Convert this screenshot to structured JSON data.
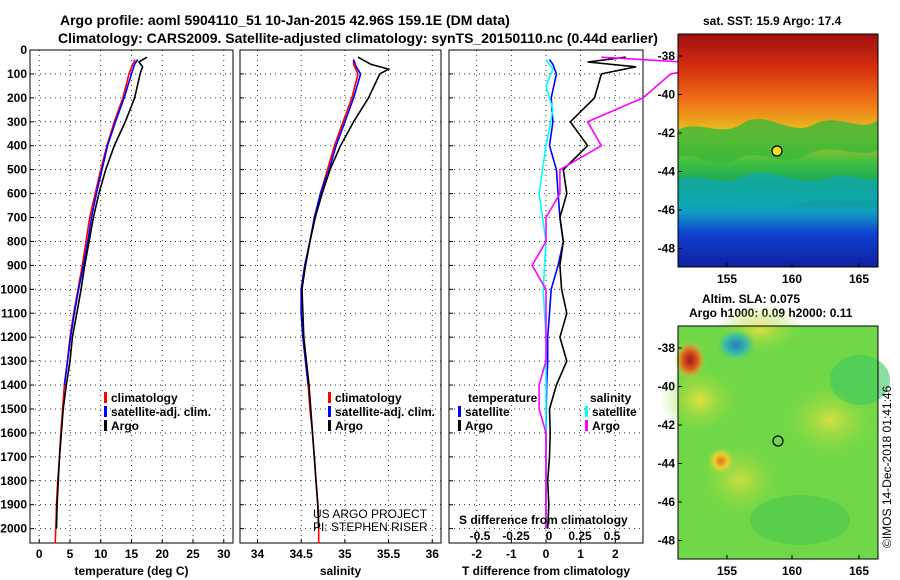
{
  "header": {
    "title_line1": "Argo profile: aoml 5904110_51 10-Jan-2015 42.96S 159.1E (DM data)",
    "title_line2": "Climatology: CARS2009. Satellite-adjusted climatology: synTS_20150110.nc (0.44d earlier)"
  },
  "colors": {
    "climatology": "#ff0000",
    "satellite": "#0000ff",
    "argo": "#000000",
    "satellite_s": "#00ffff",
    "argo_s": "#ff00ff"
  },
  "depth_axis": {
    "ticks": [
      0,
      100,
      200,
      300,
      400,
      500,
      600,
      700,
      800,
      900,
      1000,
      1100,
      1200,
      1300,
      1400,
      1500,
      1600,
      1700,
      1800,
      1900,
      2000
    ],
    "range": [
      2060,
      0
    ]
  },
  "chart_data": [
    {
      "type": "line",
      "id": "temperature",
      "xlabel": "temperature (deg C)",
      "xlim": [
        -1.5,
        31.5
      ],
      "xticks": [
        0,
        5,
        10,
        15,
        20,
        25,
        30
      ],
      "legend": [
        "climatology",
        "satellite-adj. clim.",
        "Argo"
      ],
      "series": [
        {
          "name": "climatology",
          "color": "#ff0000",
          "points": [
            [
              15.6,
              40
            ],
            [
              15.2,
              60
            ],
            [
              14.6,
              100
            ],
            [
              13.6,
              200
            ],
            [
              12.2,
              300
            ],
            [
              11,
              400
            ],
            [
              10,
              500
            ],
            [
              9.1,
              600
            ],
            [
              8.2,
              700
            ],
            [
              7.6,
              800
            ],
            [
              7,
              900
            ],
            [
              6.3,
              1000
            ],
            [
              5.6,
              1100
            ],
            [
              5,
              1200
            ],
            [
              4.6,
              1300
            ],
            [
              4.1,
              1400
            ],
            [
              3.8,
              1500
            ],
            [
              3.5,
              1600
            ],
            [
              3.3,
              1700
            ],
            [
              3,
              1800
            ],
            [
              2.8,
              1900
            ],
            [
              2.7,
              2000
            ],
            [
              2.6,
              2060
            ]
          ]
        },
        {
          "name": "satellite-adj. clim.",
          "color": "#0000ff",
          "points": [
            [
              16,
              40
            ],
            [
              15.5,
              60
            ],
            [
              15,
              100
            ],
            [
              13.8,
              200
            ],
            [
              12.4,
              300
            ],
            [
              11.1,
              400
            ],
            [
              10.2,
              500
            ],
            [
              9.3,
              600
            ],
            [
              8.5,
              700
            ],
            [
              7.9,
              800
            ],
            [
              7.2,
              900
            ],
            [
              6.4,
              1000
            ],
            [
              5.7,
              1100
            ],
            [
              5.1,
              1200
            ],
            [
              4.6,
              1300
            ],
            [
              4.1,
              1400
            ]
          ]
        },
        {
          "name": "Argo",
          "color": "#000000",
          "points": [
            [
              17.5,
              30
            ],
            [
              16.2,
              50
            ],
            [
              16.8,
              70
            ],
            [
              16.4,
              100
            ],
            [
              15.5,
              200
            ],
            [
              14,
              300
            ],
            [
              12.2,
              400
            ],
            [
              10.8,
              500
            ],
            [
              9.7,
              600
            ],
            [
              8.8,
              700
            ],
            [
              8.1,
              800
            ],
            [
              7.4,
              900
            ],
            [
              6.8,
              1000
            ],
            [
              6.1,
              1100
            ],
            [
              5.4,
              1200
            ],
            [
              5,
              1300
            ],
            [
              4.4,
              1400
            ],
            [
              3.9,
              1500
            ],
            [
              3.6,
              1600
            ],
            [
              3.3,
              1700
            ],
            [
              3.1,
              1800
            ],
            [
              2.9,
              1900
            ],
            [
              2.8,
              2000
            ]
          ]
        }
      ]
    },
    {
      "type": "line",
      "id": "salinity",
      "xlabel": "salinity",
      "xlim": [
        33.8,
        36.1
      ],
      "xticks": [
        34,
        34.5,
        35,
        35.5,
        36
      ],
      "xticklabels": [
        "34",
        "34.5",
        "35",
        "35.5",
        "36"
      ],
      "legend": [
        "climatology",
        "satellite-adj. clim.",
        "Argo"
      ],
      "annotation": [
        "US ARGO PROJECT",
        "PI: STEPHEN RISER"
      ],
      "series": [
        {
          "name": "climatology",
          "color": "#ff0000",
          "points": [
            [
              35.1,
              40
            ],
            [
              35.1,
              60
            ],
            [
              35.15,
              100
            ],
            [
              35.08,
              200
            ],
            [
              34.98,
              300
            ],
            [
              34.88,
              400
            ],
            [
              34.8,
              500
            ],
            [
              34.72,
              600
            ],
            [
              34.66,
              700
            ],
            [
              34.6,
              800
            ],
            [
              34.55,
              900
            ],
            [
              34.5,
              1000
            ],
            [
              34.5,
              1100
            ],
            [
              34.52,
              1200
            ],
            [
              34.55,
              1300
            ],
            [
              34.58,
              1400
            ],
            [
              34.6,
              1500
            ],
            [
              34.63,
              1600
            ],
            [
              34.65,
              1700
            ],
            [
              34.67,
              1800
            ],
            [
              34.69,
              1900
            ],
            [
              34.7,
              2000
            ],
            [
              34.7,
              2060
            ]
          ]
        },
        {
          "name": "satellite-adj. clim.",
          "color": "#0000ff",
          "points": [
            [
              35.1,
              40
            ],
            [
              35.13,
              70
            ],
            [
              35.18,
              100
            ],
            [
              35.1,
              200
            ],
            [
              35,
              300
            ],
            [
              34.9,
              400
            ],
            [
              34.82,
              500
            ],
            [
              34.72,
              600
            ],
            [
              34.65,
              700
            ],
            [
              34.6,
              800
            ],
            [
              34.54,
              900
            ],
            [
              34.5,
              1000
            ],
            [
              34.5,
              1100
            ],
            [
              34.52,
              1200
            ],
            [
              34.55,
              1300
            ],
            [
              34.58,
              1400
            ]
          ]
        },
        {
          "name": "Argo",
          "color": "#000000",
          "points": [
            [
              35.15,
              30
            ],
            [
              35.3,
              60
            ],
            [
              35.5,
              80
            ],
            [
              35.4,
              100
            ],
            [
              35.27,
              200
            ],
            [
              35.1,
              300
            ],
            [
              34.95,
              400
            ],
            [
              34.83,
              500
            ],
            [
              34.74,
              600
            ],
            [
              34.66,
              700
            ],
            [
              34.6,
              800
            ],
            [
              34.55,
              900
            ],
            [
              34.51,
              1000
            ],
            [
              34.52,
              1100
            ],
            [
              34.53,
              1200
            ],
            [
              34.56,
              1300
            ],
            [
              34.59,
              1400
            ],
            [
              34.61,
              1500
            ],
            [
              34.63,
              1600
            ],
            [
              34.65,
              1700
            ],
            [
              34.67,
              1800
            ],
            [
              34.69,
              1900
            ],
            [
              34.7,
              2000
            ]
          ]
        }
      ]
    },
    {
      "type": "line",
      "id": "difference",
      "xlabel": "T difference from climatology",
      "xlim": [
        -2.8,
        2.8
      ],
      "xticks": [
        -2,
        -1,
        0,
        1,
        2
      ],
      "legend_temperature_header": "temperature",
      "legend_salinity_header": "salinity",
      "legend": [
        "satellite",
        "Argo"
      ],
      "s_axis_label": "S difference from climatology",
      "s_ticks": [
        "-0.5",
        "-0.25",
        "0",
        "0.25",
        "0.5"
      ],
      "series": [
        {
          "name": "T satellite",
          "color": "#0000ff",
          "points": [
            [
              0.1,
              40
            ],
            [
              0.2,
              60
            ],
            [
              0.3,
              100
            ],
            [
              0.15,
              200
            ],
            [
              0.2,
              300
            ],
            [
              0.1,
              400
            ],
            [
              0.3,
              500
            ],
            [
              0.35,
              600
            ],
            [
              0.4,
              700
            ],
            [
              0.5,
              800
            ],
            [
              0.35,
              900
            ],
            [
              0.15,
              1000
            ],
            [
              0.1,
              1100
            ],
            [
              0.05,
              1200
            ],
            [
              0.05,
              1300
            ],
            [
              0.02,
              1400
            ],
            [
              0.01,
              1500
            ],
            [
              0,
              1600
            ],
            [
              0,
              1700
            ],
            [
              0,
              1800
            ],
            [
              0,
              1900
            ],
            [
              0,
              2000
            ]
          ]
        },
        {
          "name": "T Argo",
          "color": "#000000",
          "points": [
            [
              2.3,
              30
            ],
            [
              1.2,
              50
            ],
            [
              2.6,
              70
            ],
            [
              1.6,
              100
            ],
            [
              1.4,
              200
            ],
            [
              0.7,
              300
            ],
            [
              1.2,
              400
            ],
            [
              0.5,
              500
            ],
            [
              0.6,
              600
            ],
            [
              0.4,
              700
            ],
            [
              0.5,
              800
            ],
            [
              0.4,
              900
            ],
            [
              0.45,
              1000
            ],
            [
              0.6,
              1100
            ],
            [
              0.4,
              1200
            ],
            [
              0.6,
              1300
            ],
            [
              0.3,
              1400
            ],
            [
              0.1,
              1500
            ],
            [
              0.12,
              1600
            ],
            [
              0.1,
              1700
            ],
            [
              0.05,
              1800
            ],
            [
              0.08,
              1900
            ],
            [
              0.05,
              2000
            ]
          ]
        },
        {
          "name": "S satellite",
          "color": "#00ffff",
          "points": [
            [
              0,
              40
            ],
            [
              0.05,
              80
            ],
            [
              0,
              150
            ],
            [
              0.05,
              250
            ],
            [
              0,
              400
            ],
            [
              -0.05,
              600
            ],
            [
              0,
              800
            ],
            [
              -0.02,
              1000
            ],
            [
              0,
              1200
            ],
            [
              0,
              1400
            ],
            [
              0,
              1600
            ],
            [
              0,
              1800
            ],
            [
              0,
              2000
            ]
          ]
        },
        {
          "name": "S Argo",
          "color": "#ff00ff",
          "points": [
            [
              0.4,
              30
            ],
            [
              1.3,
              60
            ],
            [
              0.9,
              100
            ],
            [
              0.7,
              200
            ],
            [
              0.3,
              300
            ],
            [
              0.4,
              400
            ],
            [
              0.1,
              500
            ],
            [
              0.1,
              600
            ],
            [
              0,
              700
            ],
            [
              0,
              800
            ],
            [
              -0.1,
              900
            ],
            [
              0,
              1000
            ],
            [
              0,
              1100
            ],
            [
              0,
              1200
            ],
            [
              0,
              1300
            ],
            [
              -0.05,
              1400
            ],
            [
              -0.05,
              1500
            ],
            [
              0,
              1600
            ],
            [
              0,
              1700
            ],
            [
              0,
              1800
            ],
            [
              0,
              1900
            ],
            [
              0,
              2000
            ]
          ]
        }
      ]
    }
  ],
  "maps": {
    "sst": {
      "title": "sat. SST: 15.9 Argo: 17.4",
      "yticks": [
        "-38",
        "-40",
        "-42",
        "-44",
        "-46",
        "-48"
      ],
      "xticks": [
        "155",
        "160",
        "165"
      ]
    },
    "sla": {
      "title_line1": "Altim. SLA: 0.075",
      "title_line2": "Argo h1000: 0.09 h2000: 0.11",
      "yticks": [
        "-38",
        "-40",
        "-42",
        "-44",
        "-46",
        "-48"
      ],
      "xticks": [
        "155",
        "160",
        "165"
      ]
    }
  },
  "footer": {
    "stamp": "©IMOS 14-Dec-2018 01:41:46"
  }
}
